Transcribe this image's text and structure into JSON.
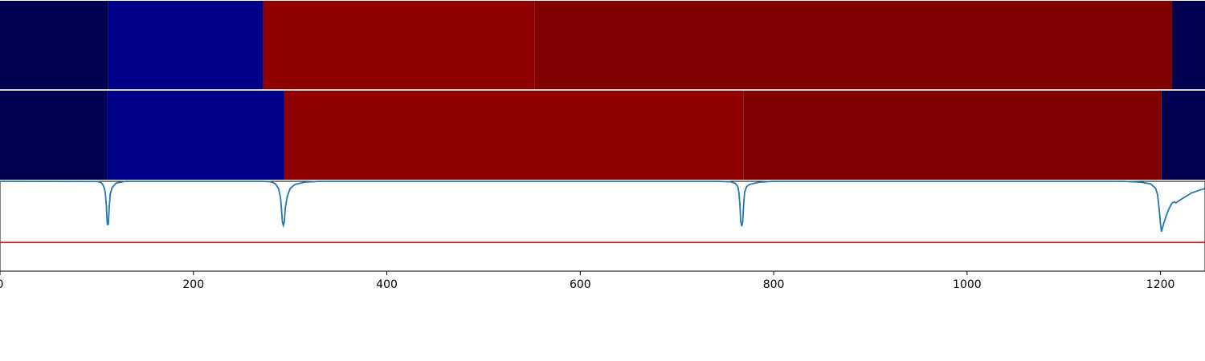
{
  "chart_data": {
    "type": "heatmap",
    "title": "",
    "xlabel": "",
    "ylabel": "",
    "xlim": [
      0,
      1246
    ],
    "xticks": [
      0,
      200,
      400,
      600,
      800,
      1000,
      1200
    ],
    "xtick_labels": [
      "0",
      "200",
      "400",
      "600",
      "800",
      "1000",
      "1200"
    ],
    "grid": false,
    "legend": "none",
    "segment_rows": [
      {
        "segments": [
          {
            "start": 0,
            "end": 112,
            "color": "#000050"
          },
          {
            "start": 112,
            "end": 272,
            "color": "#000088"
          },
          {
            "start": 272,
            "end": 553,
            "color": "#900000"
          },
          {
            "start": 553,
            "end": 1212,
            "color": "#800000"
          },
          {
            "start": 1212,
            "end": 1246,
            "color": "#000050"
          }
        ]
      },
      {
        "segments": [
          {
            "start": 0,
            "end": 111,
            "color": "#000050"
          },
          {
            "start": 111,
            "end": 294,
            "color": "#000088"
          },
          {
            "start": 294,
            "end": 769,
            "color": "#900000"
          },
          {
            "start": 769,
            "end": 1201,
            "color": "#800000"
          },
          {
            "start": 1201,
            "end": 1246,
            "color": "#000050"
          }
        ]
      }
    ],
    "line_panel": {
      "ylim": [
        0,
        1
      ],
      "threshold": {
        "value": 0.32,
        "color": "#ee1111"
      },
      "series_color": "#1f77b4",
      "x": [
        0,
        100,
        104,
        106,
        108,
        109,
        110,
        111,
        112,
        113,
        114,
        116,
        120,
        130,
        270,
        280,
        285,
        288,
        290,
        291,
        292,
        293,
        294,
        295,
        297,
        300,
        305,
        315,
        330,
        740,
        755,
        760,
        763,
        764,
        765,
        766,
        767,
        768,
        769,
        770,
        772,
        775,
        785,
        800,
        1160,
        1180,
        1190,
        1195,
        1197,
        1199,
        1200,
        1201,
        1203,
        1206,
        1209,
        1212,
        1214,
        1216,
        1220,
        1226,
        1232,
        1240,
        1246
      ],
      "y": [
        1.0,
        0.998,
        0.99,
        0.97,
        0.92,
        0.86,
        0.72,
        0.52,
        0.52,
        0.72,
        0.86,
        0.93,
        0.98,
        1.0,
        1.0,
        0.995,
        0.97,
        0.92,
        0.82,
        0.7,
        0.55,
        0.51,
        0.55,
        0.7,
        0.83,
        0.92,
        0.965,
        0.99,
        1.0,
        1.0,
        0.995,
        0.98,
        0.94,
        0.88,
        0.75,
        0.55,
        0.5,
        0.55,
        0.75,
        0.88,
        0.94,
        0.965,
        0.99,
        1.0,
        1.0,
        0.99,
        0.97,
        0.92,
        0.85,
        0.65,
        0.52,
        0.44,
        0.52,
        0.62,
        0.7,
        0.76,
        0.77,
        0.76,
        0.79,
        0.83,
        0.87,
        0.9,
        0.92
      ]
    }
  }
}
